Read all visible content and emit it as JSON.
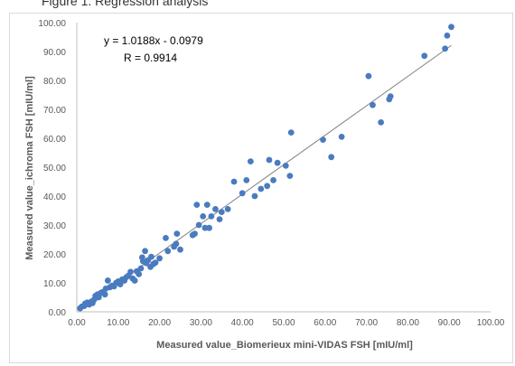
{
  "caption": "Figure 1. Regression analysis",
  "chart_data": {
    "type": "scatter",
    "title": "",
    "xlabel": "Measured value_Biomerieux mini-VIDAS  FSH [mIU/ml]",
    "ylabel": "Measured value_ichroma FSH [mIU/ml]",
    "xlim": [
      0,
      100
    ],
    "ylim": [
      0,
      100
    ],
    "x_ticks": [
      "0.00",
      "10.00",
      "20.00",
      "30.00",
      "40.00",
      "50.00",
      "60.00",
      "70.00",
      "80.00",
      "90.00",
      "100.00"
    ],
    "y_ticks": [
      "0.00",
      "10.00",
      "20.00",
      "30.00",
      "40.00",
      "50.00",
      "60.00",
      "70.00",
      "80.00",
      "90.00",
      "100.00"
    ],
    "grid": false,
    "legend": "none",
    "point_color": "#4a7bbf",
    "trendline_color": "#808080",
    "trendline": {
      "slope": 1.0188,
      "intercept": -0.0979
    },
    "equation_text": "y = 1.0188x - 0.0979",
    "r_text": "R = 0.9914",
    "points": [
      [
        0.8,
        1.2
      ],
      [
        1.2,
        1.8
      ],
      [
        1.8,
        2.0
      ],
      [
        2.0,
        2.8
      ],
      [
        2.5,
        3.2
      ],
      [
        3.0,
        2.5
      ],
      [
        3.5,
        3.5
      ],
      [
        3.8,
        3.0
      ],
      [
        4.2,
        4.2
      ],
      [
        4.5,
        5.5
      ],
      [
        5.0,
        6.0
      ],
      [
        5.3,
        5.0
      ],
      [
        5.8,
        6.5
      ],
      [
        6.2,
        6.8
      ],
      [
        6.8,
        6.0
      ],
      [
        7.0,
        8.0
      ],
      [
        7.5,
        10.8
      ],
      [
        8.0,
        8.5
      ],
      [
        8.5,
        9.0
      ],
      [
        9.0,
        8.8
      ],
      [
        9.5,
        10.0
      ],
      [
        10.0,
        10.5
      ],
      [
        10.5,
        9.5
      ],
      [
        11.0,
        11.2
      ],
      [
        11.5,
        10.8
      ],
      [
        12.0,
        12.0
      ],
      [
        12.5,
        12.5
      ],
      [
        13.0,
        13.8
      ],
      [
        13.5,
        11.5
      ],
      [
        14.0,
        10.8
      ],
      [
        14.5,
        14.0
      ],
      [
        15.0,
        13.0
      ],
      [
        15.5,
        15.0
      ],
      [
        15.8,
        18.8
      ],
      [
        16.0,
        17.5
      ],
      [
        16.5,
        21.0
      ],
      [
        16.8,
        16.8
      ],
      [
        17.2,
        17.8
      ],
      [
        17.8,
        15.5
      ],
      [
        18.0,
        19.0
      ],
      [
        18.5,
        16.5
      ],
      [
        19.0,
        17.0
      ],
      [
        20.0,
        18.5
      ],
      [
        21.5,
        25.5
      ],
      [
        22.0,
        21.0
      ],
      [
        23.5,
        22.5
      ],
      [
        24.0,
        23.5
      ],
      [
        24.2,
        27.0
      ],
      [
        25.0,
        21.5
      ],
      [
        28.0,
        26.5
      ],
      [
        28.5,
        27.0
      ],
      [
        29.0,
        37.0
      ],
      [
        29.5,
        30.0
      ],
      [
        30.5,
        33.0
      ],
      [
        31.0,
        29.0
      ],
      [
        31.5,
        37.0
      ],
      [
        32.0,
        29.0
      ],
      [
        32.5,
        33.0
      ],
      [
        33.5,
        35.5
      ],
      [
        34.5,
        32.0
      ],
      [
        35.0,
        34.5
      ],
      [
        36.5,
        35.5
      ],
      [
        38.0,
        45.0
      ],
      [
        40.0,
        41.0
      ],
      [
        41.0,
        45.5
      ],
      [
        42.0,
        52.0
      ],
      [
        43.0,
        40.0
      ],
      [
        44.5,
        42.5
      ],
      [
        46.0,
        43.5
      ],
      [
        46.5,
        52.5
      ],
      [
        47.5,
        45.5
      ],
      [
        48.5,
        51.5
      ],
      [
        50.5,
        50.5
      ],
      [
        51.5,
        47.0
      ],
      [
        51.8,
        62.0
      ],
      [
        59.5,
        59.5
      ],
      [
        61.5,
        53.5
      ],
      [
        64.0,
        60.5
      ],
      [
        70.5,
        81.5
      ],
      [
        71.5,
        71.5
      ],
      [
        73.5,
        65.5
      ],
      [
        75.5,
        73.5
      ],
      [
        75.8,
        74.5
      ],
      [
        84.0,
        88.5
      ],
      [
        89.0,
        91.0
      ],
      [
        89.5,
        95.5
      ],
      [
        90.5,
        98.5
      ]
    ]
  }
}
